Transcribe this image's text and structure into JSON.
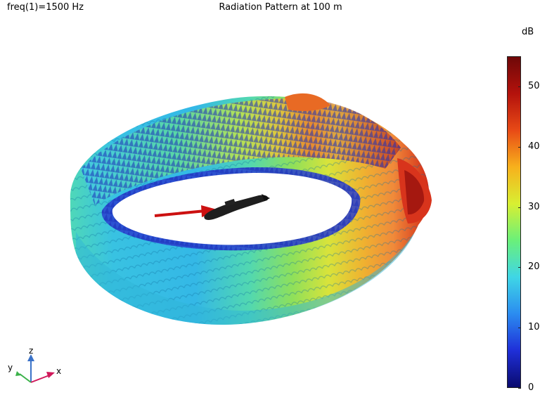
{
  "header": {
    "freq_label": "freq(1)=1500 Hz",
    "title": "Radiation Pattern at 100 m"
  },
  "colorbar": {
    "unit": "dB",
    "ticks": [
      "0",
      "10",
      "20",
      "30",
      "40",
      "50"
    ],
    "min": 0,
    "max": 55,
    "colors": [
      "#0a0a6e",
      "#1f2fd8",
      "#2b8cf0",
      "#3fd6e6",
      "#6af07a",
      "#d8ef32",
      "#f7b11c",
      "#e84a16",
      "#b4120c",
      "#6e0808"
    ]
  },
  "axis_triad": {
    "x_label": "x",
    "y_label": "y",
    "z_label": "z",
    "x_color": "#d0185a",
    "y_color": "#3bb24a",
    "z_color": "#3a72c8"
  }
}
